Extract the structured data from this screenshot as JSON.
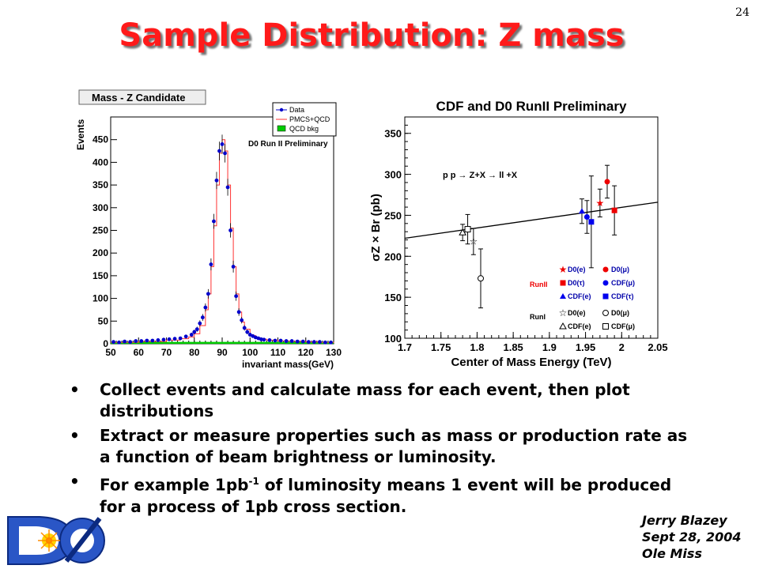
{
  "slide": {
    "number": "24",
    "title": "Sample Distribution: Z mass"
  },
  "colors": {
    "title": "#ff1a1a",
    "data_points": "#0000cc",
    "mc_line": "#ff3333",
    "qcd_fill": "#00cc00",
    "fit_line": "#000000"
  },
  "icons": {
    "logo": "d0-logo",
    "bullet": "bullet-dot"
  },
  "chart_data": [
    {
      "type": "line",
      "title": "Mass - Z Candidate",
      "annotation": "D0 Run II Preliminary",
      "xlabel": "invariant mass(GeV)",
      "ylabel": "Events",
      "xlim": [
        50,
        130
      ],
      "ylim": [
        0,
        500
      ],
      "xticks": [
        "50",
        "60",
        "70",
        "80",
        "90",
        "100",
        "110",
        "120",
        "130"
      ],
      "yticks": [
        "0",
        "50",
        "100",
        "150",
        "200",
        "250",
        "300",
        "350",
        "400",
        "450"
      ],
      "legend": [
        "Data",
        "PMCS+QCD",
        "QCD bkg"
      ],
      "legend_position": "top-right",
      "grid": false,
      "data": {
        "x": [
          51,
          53,
          55,
          57,
          59,
          61,
          63,
          65,
          67,
          69,
          71,
          73,
          75,
          77,
          79,
          80,
          81,
          82,
          83,
          84,
          85,
          86,
          87,
          88,
          89,
          90,
          91,
          92,
          93,
          94,
          95,
          96,
          97,
          98,
          99,
          100,
          101,
          102,
          103,
          104,
          105,
          107,
          109,
          111,
          113,
          115,
          117,
          119,
          121,
          123,
          125,
          127,
          129
        ],
        "y": [
          4,
          3,
          5,
          4,
          6,
          6,
          7,
          7,
          8,
          9,
          10,
          11,
          12,
          16,
          20,
          26,
          32,
          45,
          58,
          80,
          110,
          175,
          270,
          360,
          425,
          440,
          420,
          345,
          250,
          170,
          105,
          70,
          52,
          35,
          26,
          20,
          17,
          14,
          12,
          10,
          9,
          8,
          7,
          7,
          6,
          6,
          5,
          5,
          4,
          4,
          4,
          3,
          3
        ]
      },
      "mc": {
        "x": [
          50,
          60,
          70,
          75,
          78,
          80,
          82,
          84,
          85,
          86,
          87,
          88,
          89,
          90,
          91,
          92,
          93,
          94,
          95,
          96,
          97,
          98,
          100,
          102,
          104,
          106,
          110,
          115,
          120,
          125,
          130
        ],
        "y": [
          3,
          5,
          8,
          11,
          15,
          22,
          40,
          75,
          110,
          170,
          260,
          350,
          420,
          450,
          425,
          350,
          255,
          170,
          110,
          70,
          48,
          32,
          18,
          13,
          10,
          8,
          6,
          5,
          4,
          3,
          2
        ]
      },
      "qcd_bkg": {
        "x": [
          50,
          130
        ],
        "y": [
          2,
          2
        ]
      }
    },
    {
      "type": "scatter",
      "title": "CDF and D0 RunII Preliminary",
      "annotation": "p p → Z+X → ll +X",
      "xlabel": "Center of Mass Energy (TeV)",
      "ylabel": "σZ × Br (pb)",
      "xlim": [
        1.7,
        2.05
      ],
      "ylim": [
        100,
        370
      ],
      "xticks": [
        "1.7",
        "1.75",
        "1.8",
        "1.85",
        "1.9",
        "1.95",
        "2",
        "2.05"
      ],
      "yticks": [
        "100",
        "150",
        "200",
        "250",
        "300",
        "350"
      ],
      "grid": false,
      "theory_line": {
        "x": [
          1.7,
          2.05
        ],
        "y": [
          222,
          266
        ]
      },
      "points": [
        {
          "label": "CDF(e)",
          "run": "RunI",
          "x": 1.78,
          "y": 229,
          "err": 10,
          "marker": "open-triangle"
        },
        {
          "label": "CDF(μ)",
          "run": "RunI",
          "x": 1.787,
          "y": 233,
          "err": 18,
          "marker": "open-square"
        },
        {
          "label": "D0(e)",
          "run": "RunI",
          "x": 1.795,
          "y": 218,
          "err": 16,
          "marker": "open-star"
        },
        {
          "label": "D0(μ)",
          "run": "RunI",
          "x": 1.805,
          "y": 173,
          "err": 36,
          "marker": "open-circle"
        },
        {
          "label": "CDF(e)",
          "run": "RunII",
          "x": 1.945,
          "y": 255,
          "err": 15,
          "marker": "filled-triangle"
        },
        {
          "label": "CDF(μ)",
          "run": "RunII",
          "x": 1.952,
          "y": 248,
          "err": 20,
          "marker": "filled-circle"
        },
        {
          "label": "CDF(τ)",
          "run": "RunII",
          "x": 1.958,
          "y": 242,
          "err": 56,
          "marker": "filled-square"
        },
        {
          "label": "D0(e)",
          "run": "RunII",
          "x": 1.97,
          "y": 265,
          "err": 17,
          "marker": "filled-star"
        },
        {
          "label": "D0(μ)",
          "run": "RunII",
          "x": 1.98,
          "y": 291,
          "err": 20,
          "marker": "filled-circle"
        },
        {
          "label": "D0(τ)",
          "run": "RunII",
          "x": 1.99,
          "y": 256,
          "err": 30,
          "marker": "filled-square"
        }
      ],
      "legend": {
        "runII_label": "RunII",
        "runI_label": "RunI",
        "runII": [
          "D0(e)",
          "D0(μ)",
          "D0(τ)",
          "CDF(μ)",
          "CDF(e)",
          "CDF(τ)"
        ],
        "runI": [
          "D0(e)",
          "D0(μ)",
          "CDF(e)",
          "CDF(μ)"
        ]
      }
    }
  ],
  "bullets": [
    "Collect events and calculate mass for each event, then plot distributions",
    "Extract or measure properties such as mass or production rate as a function of beam brightness or luminosity.",
    {
      "pre": "For example 1pb",
      "sup": "-1",
      "post": " of luminosity means 1 event will be produced for a process of 1pb cross section."
    }
  ],
  "credits": [
    "Jerry Blazey",
    "Sept 28, 2004",
    "Ole Miss"
  ]
}
